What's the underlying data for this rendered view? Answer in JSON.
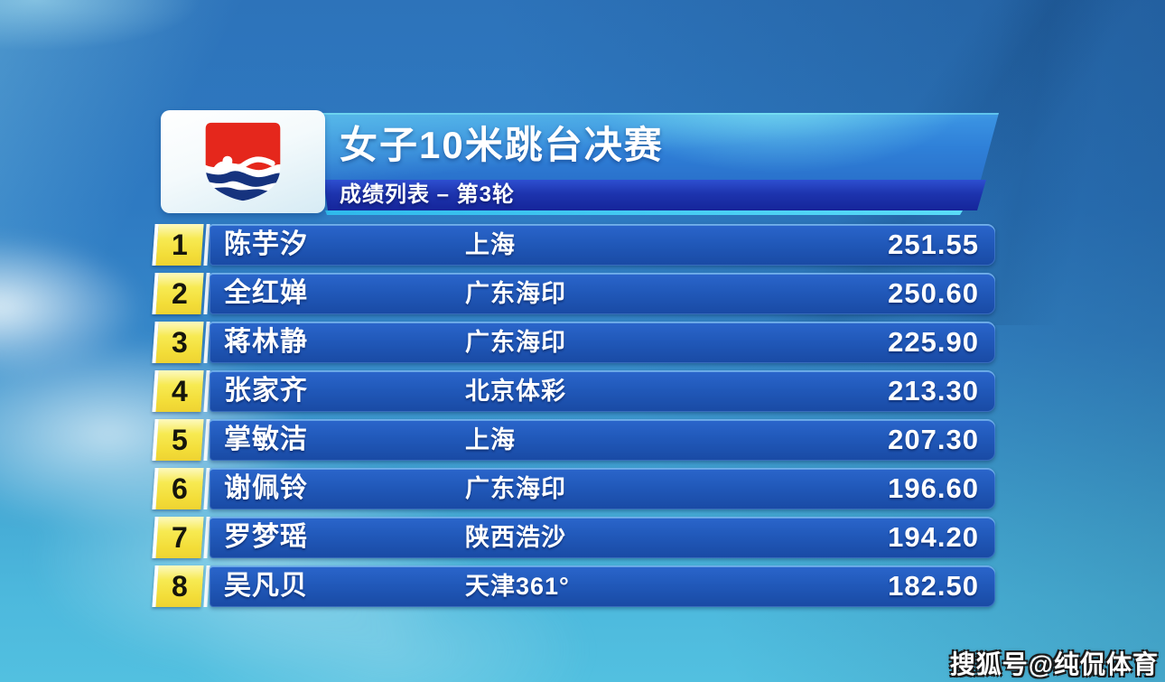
{
  "header": {
    "title": "女子10米跳台决赛",
    "subtitle": "成绩列表 – 第3轮",
    "logo_icon": "swimming-federation-logo"
  },
  "results": {
    "columns": [
      "rank",
      "name",
      "team",
      "score"
    ],
    "rows": [
      {
        "rank": "1",
        "name": "陈芋汐",
        "team": "上海",
        "score": "251.55"
      },
      {
        "rank": "2",
        "name": "全红婵",
        "team": "广东海印",
        "score": "250.60"
      },
      {
        "rank": "3",
        "name": "蒋林静",
        "team": "广东海印",
        "score": "225.90"
      },
      {
        "rank": "4",
        "name": "张家齐",
        "team": "北京体彩",
        "score": "213.30"
      },
      {
        "rank": "5",
        "name": "掌敏洁",
        "team": "上海",
        "score": "207.30"
      },
      {
        "rank": "6",
        "name": "谢佩铃",
        "team": "广东海印",
        "score": "196.60"
      },
      {
        "rank": "7",
        "name": "罗梦瑶",
        "team": "陕西浩沙",
        "score": "194.20"
      },
      {
        "rank": "8",
        "name": "吴凡贝",
        "team": "天津361°",
        "score": "182.50"
      }
    ]
  },
  "watermark": "搜狐号@纯侃体育",
  "colors": {
    "rank_yellow": "#f6e74e",
    "row_blue_top": "#2b66cc",
    "row_blue_bottom": "#194aa4",
    "title_blue": "#2f80d8",
    "subtitle_navy": "#1d34ae",
    "accent_cyan": "#3fc8f0",
    "logo_red": "#e5271c",
    "logo_navy": "#16337e",
    "background_blue": "#2e7ac2",
    "background_cyan": "#4db9dd"
  }
}
